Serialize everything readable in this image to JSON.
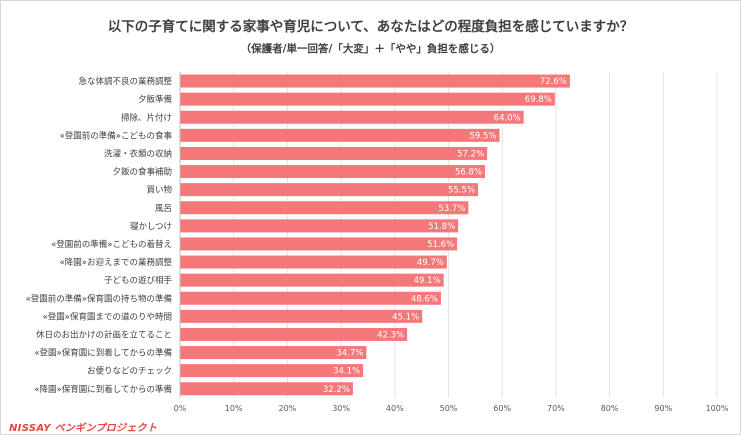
{
  "brand": {
    "logo_text": "NISSAY ペンギンプロジェクト",
    "accent": "#e8443a"
  },
  "chart_data": {
    "type": "bar",
    "orientation": "horizontal",
    "title": "以下の子育てに関する家事や育児について、あなたはどの程度負担を感じていますか？",
    "subtitle": "（保護者/単一回答/「大変」＋「やや」負担を感じる）",
    "categories": [
      "急な体調不良の業務調整",
      "夕飯準備",
      "掃除、片付け",
      "«登園前の準備»こどもの食事",
      "洗濯・衣類の収納",
      "夕飯の食事補助",
      "買い物",
      "風呂",
      "寝かしつけ",
      "«登園前の準備»こどもの着替え",
      "«降園»お迎えまでの業務調整",
      "子どもの遊び相手",
      "«登園前の準備»保育園の持ち物の準備",
      "«登園»保育園までの道のりや時間",
      "休日のお出かけの計画を立てること",
      "«登園»保育園に到着してからの準備",
      "お便りなどのチェック",
      "«降園»保育園に到着してからの準備"
    ],
    "values": [
      72.6,
      69.8,
      64.0,
      59.5,
      57.2,
      56.8,
      55.5,
      53.7,
      51.8,
      51.6,
      49.7,
      49.1,
      48.6,
      45.1,
      42.3,
      34.7,
      34.1,
      32.2
    ],
    "value_labels": [
      "72.6%",
      "69.8%",
      "64.0%",
      "59.5%",
      "57.2%",
      "56.8%",
      "55.5%",
      "53.7%",
      "51.8%",
      "51.6%",
      "49.7%",
      "49.1%",
      "48.6%",
      "45.1%",
      "42.3%",
      "34.7%",
      "34.1%",
      "32.2%"
    ],
    "xlim": [
      0,
      100
    ],
    "x_ticks": [
      "0%",
      "10%",
      "20%",
      "30%",
      "40%",
      "50%",
      "60%",
      "70%",
      "80%",
      "90%",
      "100%"
    ],
    "grid": true,
    "bar_color": "#f4787a",
    "label_color": "#ffffff"
  }
}
